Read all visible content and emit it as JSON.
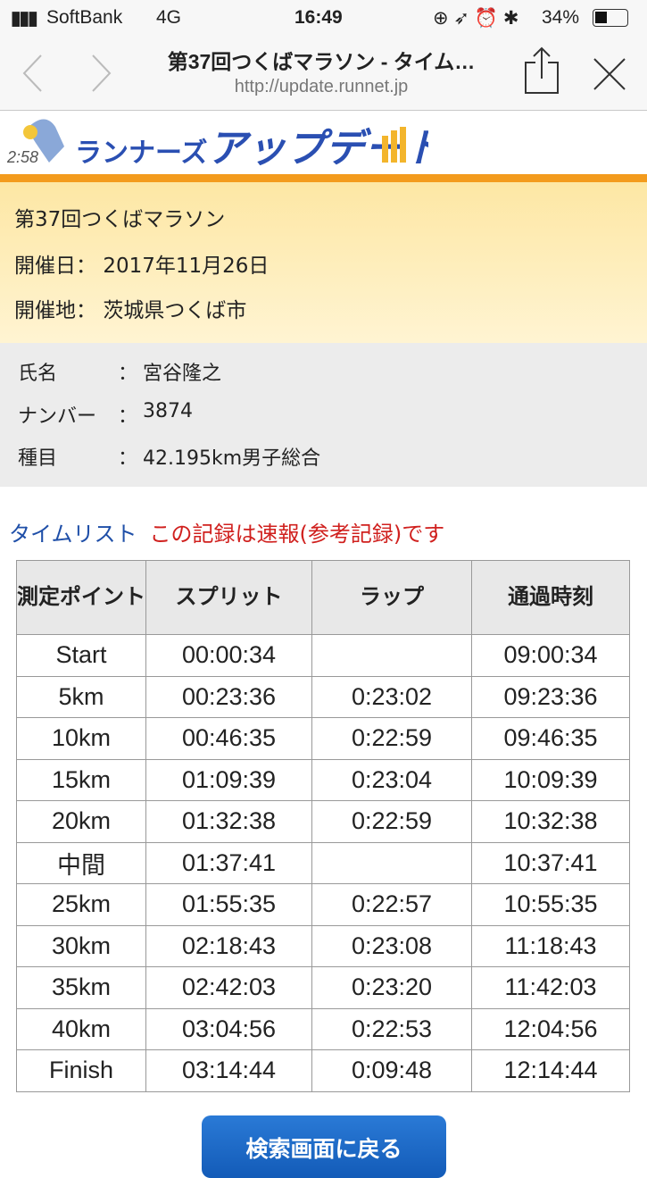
{
  "status_bar": {
    "carrier": "SoftBank",
    "network": "4G",
    "time": "16:49",
    "battery": "34%"
  },
  "browser": {
    "title": "第37回つくばマラソン - タイム…",
    "url": "http://update.runnet.jp"
  },
  "logo": {
    "text": "ランナーズアップデート",
    "badge": "2:58"
  },
  "event": {
    "name": "第37回つくばマラソン",
    "date_label": "開催日：",
    "date": "2017年11月26日",
    "place_label": "開催地：",
    "place": "茨城県つくば市"
  },
  "runner": {
    "rows": [
      {
        "label": "氏名",
        "value": "宮谷隆之"
      },
      {
        "label": "ナンバー",
        "value": "3874"
      },
      {
        "label": "種目",
        "value": "42.195km男子総合"
      }
    ]
  },
  "timelist": {
    "heading": "タイムリスト",
    "notice": "この記録は速報(参考記録)です"
  },
  "table": {
    "headers": [
      "測定ポイント",
      "スプリット",
      "ラップ",
      "通過時刻"
    ],
    "rows": [
      [
        "Start",
        "00:00:34",
        "",
        "09:00:34"
      ],
      [
        "5km",
        "00:23:36",
        "0:23:02",
        "09:23:36"
      ],
      [
        "10km",
        "00:46:35",
        "0:22:59",
        "09:46:35"
      ],
      [
        "15km",
        "01:09:39",
        "0:23:04",
        "10:09:39"
      ],
      [
        "20km",
        "01:32:38",
        "0:22:59",
        "10:32:38"
      ],
      [
        "中間",
        "01:37:41",
        "",
        "10:37:41"
      ],
      [
        "25km",
        "01:55:35",
        "0:22:57",
        "10:55:35"
      ],
      [
        "30km",
        "02:18:43",
        "0:23:08",
        "11:18:43"
      ],
      [
        "35km",
        "02:42:03",
        "0:23:20",
        "11:42:03"
      ],
      [
        "40km",
        "03:04:56",
        "0:22:53",
        "12:04:56"
      ],
      [
        "Finish",
        "03:14:44",
        "0:09:48",
        "12:14:44"
      ]
    ]
  },
  "back_button": "検索画面に戻る"
}
